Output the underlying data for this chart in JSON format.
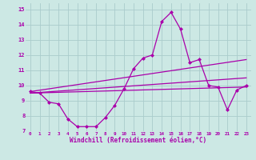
{
  "xlabel": "Windchill (Refroidissement éolien,°C)",
  "background_color": "#cce8e4",
  "grid_color": "#aacccc",
  "line_color": "#aa00aa",
  "xlim": [
    -0.5,
    23.5
  ],
  "ylim": [
    7,
    15.4
  ],
  "xticks": [
    0,
    1,
    2,
    3,
    4,
    5,
    6,
    7,
    8,
    9,
    10,
    11,
    12,
    13,
    14,
    15,
    16,
    17,
    18,
    19,
    20,
    21,
    22,
    23
  ],
  "yticks": [
    7,
    8,
    9,
    10,
    11,
    12,
    13,
    14,
    15
  ],
  "line1_x": [
    0,
    1,
    2,
    3,
    4,
    5,
    6,
    7,
    8,
    9,
    10,
    11,
    12,
    13,
    14,
    15,
    16,
    17,
    18,
    19,
    20,
    21,
    22,
    23
  ],
  "line1_y": [
    9.6,
    9.5,
    8.9,
    8.8,
    7.8,
    7.3,
    7.3,
    7.3,
    7.9,
    8.7,
    9.8,
    11.1,
    11.8,
    12.0,
    14.2,
    14.8,
    13.7,
    11.5,
    11.7,
    10.0,
    9.9,
    8.4,
    9.7,
    10.0
  ],
  "line2_x": [
    0,
    23
  ],
  "line2_y": [
    9.6,
    11.7
  ],
  "line3_x": [
    0,
    23
  ],
  "line3_y": [
    9.5,
    10.5
  ],
  "line4_x": [
    0,
    23
  ],
  "line4_y": [
    9.5,
    9.9
  ]
}
